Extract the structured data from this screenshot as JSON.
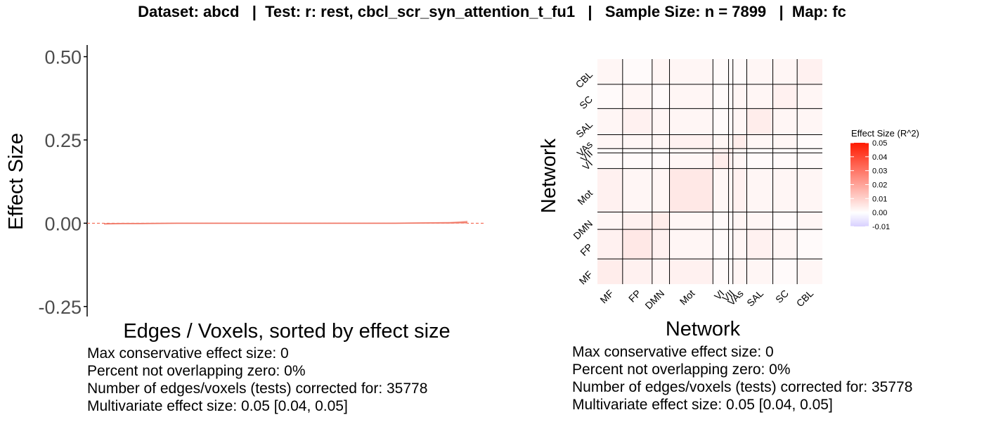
{
  "page_title": "Dataset: abcd   |  Test: r: rest, cbcl_scr_syn_attention_t_fu1   |   Sample Size: n = 7899   |  Map: fc",
  "colors": {
    "line": "#f07563",
    "ci_fill": "#f6b3a8",
    "zero_line": "#f2543d",
    "grid_line": "#000000",
    "legend_high": "#ff1a00",
    "legend_zero": "#ffffff",
    "legend_low": "#d8d0ff"
  },
  "chart_data": [
    {
      "type": "line",
      "xlabel": "Edges / Voxels, sorted by effect size",
      "ylabel": "Effect Size",
      "ylim": [
        -0.28,
        0.535
      ],
      "y_ticks": [
        {
          "value": -0.25,
          "label": "-0.25"
        },
        {
          "value": 0.0,
          "label": "0.00"
        },
        {
          "value": 0.25,
          "label": "0.25"
        },
        {
          "value": 0.5,
          "label": "0.50"
        }
      ],
      "zero_line": true,
      "grid": false,
      "n_tests": 35778,
      "series": [
        {
          "x": [
            0,
            0.05,
            0.1,
            0.2,
            0.3,
            0.4,
            0.5,
            0.6,
            0.7,
            0.8,
            0.9,
            0.95,
            0.98,
            1.0
          ],
          "y": [
            -0.002,
            -0.001,
            -0.001,
            0.0,
            0.0,
            0.0,
            0.0,
            0.0,
            0.0,
            0.0,
            0.001,
            0.001,
            0.002,
            0.003
          ],
          "lower": [
            -0.004,
            -0.003,
            -0.003,
            -0.002,
            -0.002,
            -0.002,
            -0.002,
            -0.002,
            -0.002,
            -0.002,
            -0.001,
            -0.001,
            -0.001,
            -0.002
          ],
          "upper": [
            0.0,
            0.001,
            0.001,
            0.002,
            0.002,
            0.002,
            0.002,
            0.002,
            0.002,
            0.002,
            0.003,
            0.004,
            0.006,
            0.008
          ]
        }
      ],
      "stats": [
        "Max conservative effect size: 0",
        "Percent not overlapping zero: 0%",
        "Number of edges/voxels (tests) corrected for: 35778",
        "Multivariate effect size: 0.05 [0.04, 0.05]"
      ]
    },
    {
      "type": "heatmap",
      "xlabel": "Network",
      "ylabel": "Network",
      "networks": [
        "MF",
        "FP",
        "DMN",
        "Mot",
        "VI",
        "VII",
        "VAs",
        "SAL",
        "SC",
        "CBL"
      ],
      "network_sizes": [
        29,
        34,
        20,
        50,
        18,
        5,
        16,
        30,
        28,
        29
      ],
      "values": [
        [
          0.004,
          0.003,
          0.002,
          0.003,
          0.001,
          0.001,
          0.002,
          0.002,
          0.001,
          0.002
        ],
        [
          0.003,
          0.005,
          0.003,
          0.002,
          0.001,
          0.001,
          0.002,
          0.003,
          0.002,
          0.001
        ],
        [
          0.002,
          0.003,
          0.004,
          0.002,
          0.001,
          0.001,
          0.002,
          0.002,
          0.001,
          0.002
        ],
        [
          0.003,
          0.002,
          0.002,
          0.005,
          0.002,
          0.002,
          0.003,
          0.002,
          0.002,
          0.002
        ],
        [
          0.001,
          0.001,
          0.001,
          0.002,
          0.004,
          0.003,
          0.002,
          0.001,
          0.001,
          0.001
        ],
        [
          0.001,
          0.001,
          0.001,
          0.002,
          0.003,
          0.004,
          0.002,
          0.001,
          0.001,
          0.001
        ],
        [
          0.002,
          0.002,
          0.002,
          0.003,
          0.002,
          0.002,
          0.004,
          0.002,
          0.002,
          0.001
        ],
        [
          0.002,
          0.003,
          0.002,
          0.002,
          0.001,
          0.001,
          0.002,
          0.004,
          0.002,
          0.002
        ],
        [
          0.001,
          0.002,
          0.001,
          0.002,
          0.001,
          0.001,
          0.002,
          0.002,
          0.003,
          0.002
        ],
        [
          0.002,
          0.001,
          0.002,
          0.002,
          0.001,
          0.001,
          0.001,
          0.002,
          0.002,
          0.003
        ]
      ],
      "legend": {
        "title": "Effect Size (R^2)",
        "min": -0.01,
        "max": 0.05,
        "ticks": [
          {
            "value": 0.05,
            "label": "0.05"
          },
          {
            "value": 0.04,
            "label": "0.04"
          },
          {
            "value": 0.03,
            "label": "0.03"
          },
          {
            "value": 0.02,
            "label": "0.02"
          },
          {
            "value": 0.01,
            "label": "0.01"
          },
          {
            "value": 0.0,
            "label": "0.00"
          },
          {
            "value": -0.01,
            "label": "-0.01"
          }
        ]
      },
      "stats": [
        "Max conservative effect size: 0",
        "Percent not overlapping zero: 0%",
        "Number of edges/voxels (tests) corrected for: 35778",
        "Multivariate effect size: 0.05 [0.04, 0.05]"
      ]
    }
  ]
}
